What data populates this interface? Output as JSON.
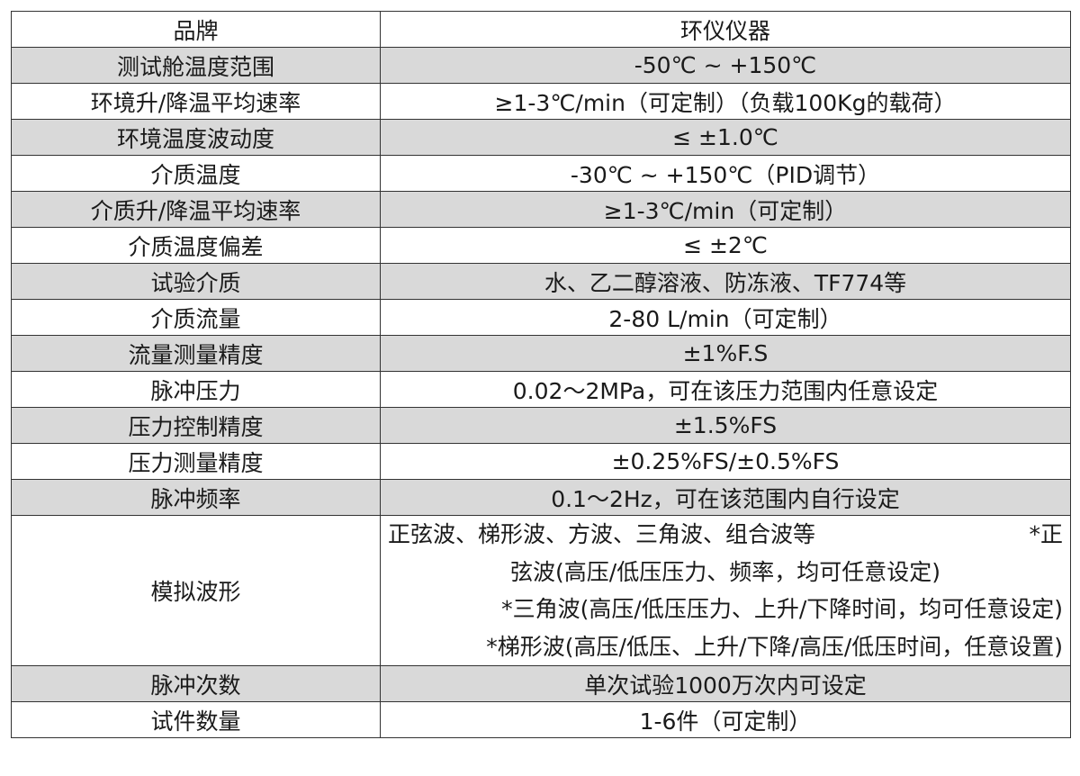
{
  "table": {
    "rows": [
      [
        "品牌",
        "环仪仪器"
      ],
      [
        "测试舱温度范围",
        "-50℃ ~ +150℃"
      ],
      [
        "环境升/降温平均速率",
        "≥1-3℃/min（可定制）（负载100Kg的载荷）"
      ],
      [
        "环境温度波动度",
        "≤ ±1.0℃"
      ],
      [
        "介质温度",
        "-30℃ ~ +150℃（PID调节）"
      ],
      [
        "介质升/降温平均速率",
        "≥1-3℃/min（可定制）"
      ],
      [
        "介质温度偏差",
        "≤ ±2℃"
      ],
      [
        "试验介质",
        "水、乙二醇溶液、防冻液、TF774等"
      ],
      [
        "介质流量",
        "2-80 L/min（可定制）"
      ],
      [
        "流量测量精度",
        "±1%F.S"
      ],
      [
        "脉冲压力",
        "0.02～2MPa，可在该压力范围内任意设定"
      ],
      [
        "压力控制精度",
        "±1.5%FS"
      ],
      [
        "压力测量精度",
        "±0.25%FS/±0.5%FS"
      ],
      [
        "脉冲频率",
        "0.1～2Hz，可在该范围内自行设定"
      ],
      [
        "模拟波形",
        [
          "正弦波、梯形波、方波、三角波、组合波等",
          "*正",
          "弦波(高压/低压压力、频率，均可任意设定)",
          "*三角波(高压/低压压力、上升/下降时间，均可任意设定)",
          "*梯形波(高压/低压、上升/下降/高压/低压时间，任意设置)"
        ]
      ],
      [
        "脉冲次数",
        "单次试验1000万次内可设定"
      ],
      [
        "试件数量",
        "1-6件（可定制）"
      ]
    ]
  }
}
